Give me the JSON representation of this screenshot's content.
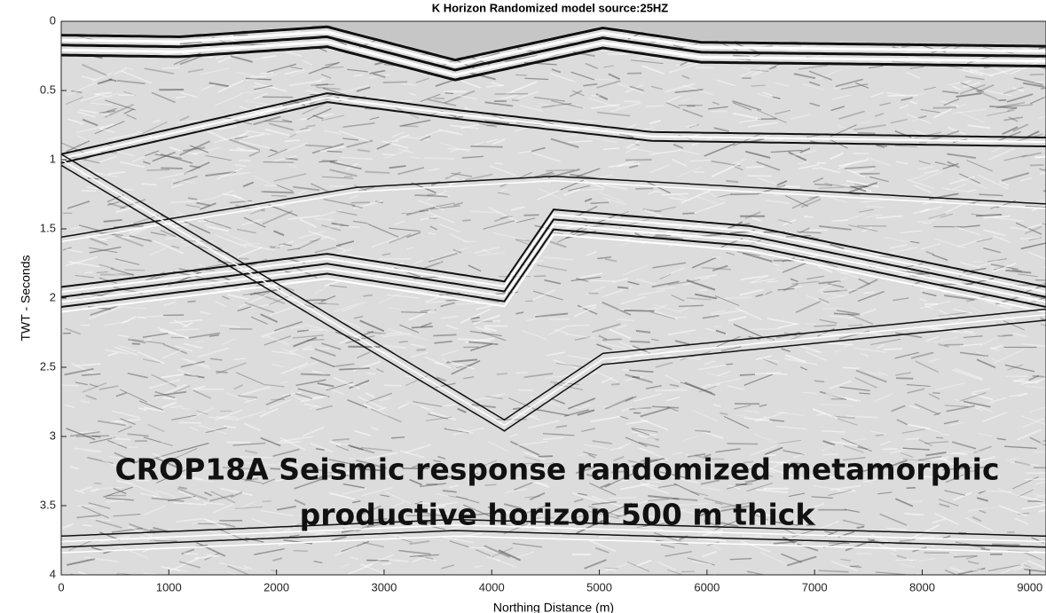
{
  "chart_data": {
    "type": "image",
    "title": "K Horizon Randomized model source:25HZ",
    "xlabel": "Northing Distance (m)",
    "ylabel": "TWT - Seconds",
    "xlim": [
      0,
      9150
    ],
    "xticks": [
      0,
      1000,
      2000,
      3000,
      4000,
      5000,
      6000,
      7000,
      8000,
      9000
    ],
    "ylim": [
      0,
      4
    ],
    "yticks": [
      0,
      0.5,
      1,
      1.5,
      2,
      2.5,
      3,
      3.5,
      4
    ],
    "y_reversed": true,
    "annotations": [
      "CROP18A Seismic response randomized metamorphic",
      "productive horizon 500 m thick"
    ]
  }
}
